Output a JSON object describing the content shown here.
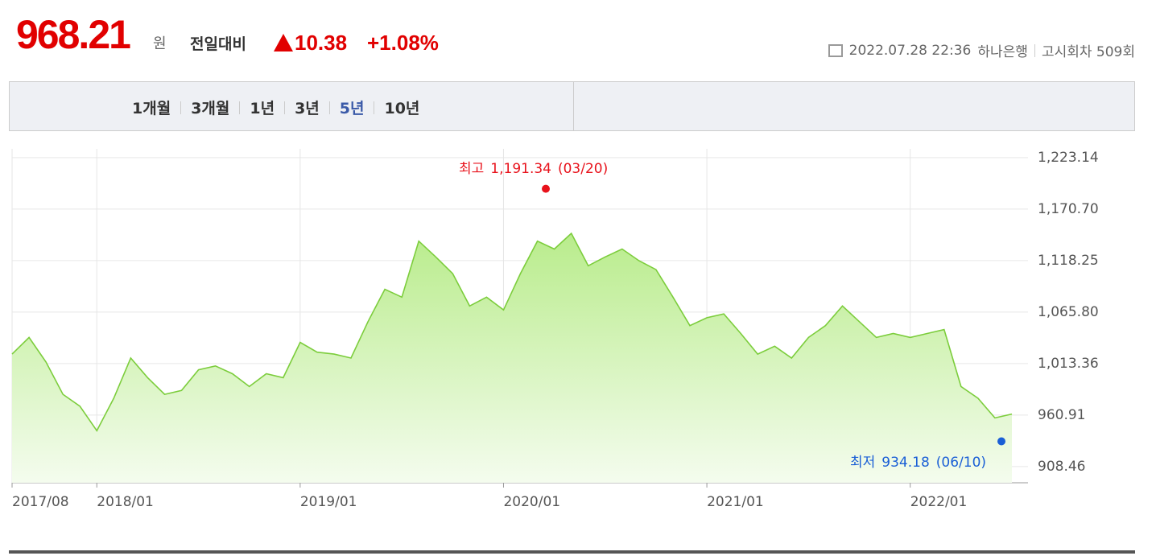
{
  "header": {
    "price": "968.21",
    "unit": "원",
    "compare_label": "전일대비",
    "change": "10.38",
    "change_pct": "+1.08%",
    "datetime": "2022.07.28 22:36",
    "bank": "하나은행",
    "round": "고시회차 509회"
  },
  "tabs": {
    "items": [
      "1개월",
      "3개월",
      "1년",
      "3년",
      "5년",
      "10년"
    ],
    "selected": 4
  },
  "chart_data": {
    "type": "area",
    "color": "#7ccd3c",
    "categories": [
      "2017/08",
      null,
      null,
      null,
      null,
      "2018/01",
      null,
      null,
      null,
      null,
      null,
      null,
      null,
      null,
      null,
      null,
      null,
      "2019/01",
      null,
      null,
      null,
      null,
      null,
      null,
      null,
      null,
      null,
      null,
      null,
      "2020/01",
      null,
      null,
      null,
      null,
      null,
      null,
      null,
      null,
      null,
      null,
      null,
      "2021/01",
      null,
      null,
      null,
      null,
      null,
      null,
      null,
      null,
      null,
      null,
      null,
      "2022/01",
      null,
      null,
      null,
      null,
      null,
      null
    ],
    "values": [
      1023,
      1040,
      1015,
      982,
      970,
      945,
      978,
      1019,
      999,
      982,
      986,
      1007,
      1011,
      1003,
      990,
      1003,
      999,
      1035,
      1025,
      1023,
      1019,
      1056,
      1089,
      1081,
      1138,
      1122,
      1105,
      1072,
      1081,
      1068,
      1105,
      1138,
      1130,
      1146,
      1113,
      1122,
      1130,
      1118,
      1109,
      1081,
      1052,
      1060,
      1064,
      1044,
      1023,
      1031,
      1019,
      1040,
      1052,
      1072,
      1056,
      1040,
      1044,
      1040,
      1044,
      1048,
      990,
      978,
      958,
      962
    ],
    "ylim": [
      892,
      1232
    ],
    "yticks": [
      {
        "value": 908.46,
        "label": "908.46"
      },
      {
        "value": 960.91,
        "label": "960.91"
      },
      {
        "value": 1013.36,
        "label": "1,013.36"
      },
      {
        "value": 1065.8,
        "label": "1,065.80"
      },
      {
        "value": 1118.25,
        "label": "1,118.25"
      },
      {
        "value": 1170.7,
        "label": "1,170.70"
      },
      {
        "value": 1223.14,
        "label": "1,223.14"
      }
    ],
    "grid": true,
    "high": {
      "label": "최고",
      "value": 1191.34,
      "value_label": "1,191.34",
      "date": "(03/20)",
      "color": "#e8121b"
    },
    "low": {
      "label": "최저",
      "value": 934.18,
      "value_label": "934.18",
      "date": "(06/10)",
      "color": "#1a5fd6"
    }
  }
}
